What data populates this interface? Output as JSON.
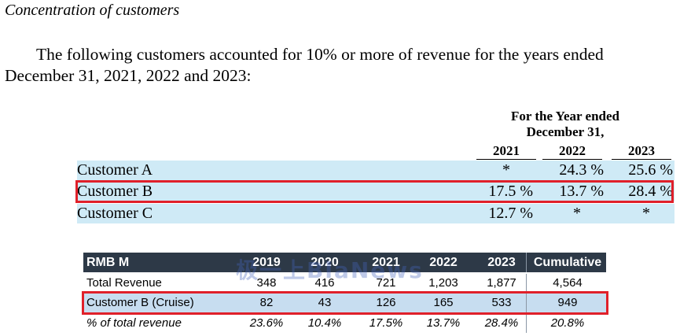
{
  "section_heading": "Concentration of customers",
  "paragraph": "The following customers accounted for 10% or more of revenue for the years ended December 31, 2021, 2022 and 2023:",
  "upper_table": {
    "header_line1": "For the Year ended",
    "header_line2": "December 31,",
    "years": [
      "2021",
      "2022",
      "2023"
    ],
    "rows": [
      {
        "label": "Customer A",
        "values": [
          "*",
          "24.3 %",
          "25.6 %"
        ]
      },
      {
        "label": "Customer B",
        "values": [
          "17.5 %",
          "13.7 %",
          "28.4 %"
        ]
      },
      {
        "label": "Customer C",
        "values": [
          "12.7 %",
          "*",
          "*"
        ]
      }
    ]
  },
  "lower_table": {
    "headers": [
      "RMB M",
      "2019",
      "2020",
      "2021",
      "2022",
      "2023",
      "Cumulative"
    ],
    "rows": [
      {
        "cells": [
          "Total Revenue",
          "348",
          "416",
          "721",
          "1,203",
          "1,877",
          "4,564"
        ]
      },
      {
        "cells": [
          "Customer B (Cruise)",
          "82",
          "43",
          "126",
          "165",
          "533",
          "949"
        ]
      },
      {
        "cells": [
          "% of total revenue",
          "23.6%",
          "10.4%",
          "17.5%",
          "13.7%",
          "28.4%",
          "20.8%"
        ]
      }
    ]
  },
  "watermark": "极一上BlaNews",
  "colors": {
    "highlight": "#e0202a",
    "row_fill": "#cfeaf6",
    "header_fill": "#2d3947"
  }
}
